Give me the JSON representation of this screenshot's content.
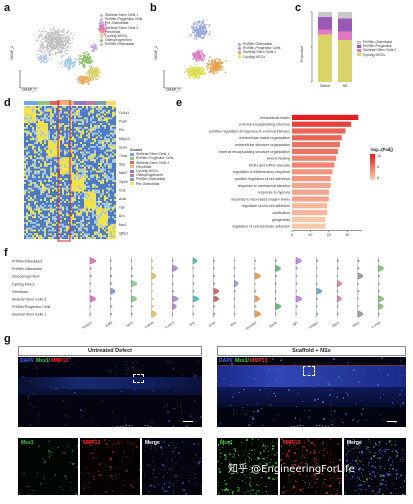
{
  "panels": {
    "a": {
      "letter": "a",
      "xlabel": "UMAP_1",
      "ylabel": "UMAP_2",
      "legend": [
        {
          "name": "Skeletal Stem Cells 1",
          "color": "#c9a7e8"
        },
        {
          "name": "Prf/Mtn-Progenitor Cells",
          "color": "#b8c9e6"
        },
        {
          "name": "Pre-Osteoblast",
          "color": "#9ecae1"
        },
        {
          "name": "Skeletal Stem Cells 2",
          "color": "#e377c2"
        },
        {
          "name": "Fibroblast",
          "color": "#f2a65a"
        },
        {
          "name": "Cycling MSCs",
          "color": "#d9d46a"
        },
        {
          "name": "Osteoprogenitors",
          "color": "#8fbf6a"
        },
        {
          "name": "Prf/Mtn-Osteoblast",
          "color": "#c0c0c0"
        }
      ]
    },
    "b": {
      "letter": "b",
      "xlabel": "UMAP_1",
      "ylabel": "UMAP_2",
      "legend": [
        {
          "name": "Prf/Mtn-Osteoblast",
          "color": "#9aa9e0"
        },
        {
          "name": "Prf/Mtn-Progenitor Cells",
          "color": "#e377c2"
        },
        {
          "name": "Skeletal Stem Cells 2",
          "color": "#e6a04d"
        },
        {
          "name": "Cycling MSCs",
          "color": "#dddd55"
        }
      ]
    },
    "c": {
      "letter": "c",
      "ylabel": "Proportion",
      "groups": [
        "Defect",
        "NS"
      ],
      "legend": [
        {
          "name": "Prf/Mtn-Osteoblast",
          "color": "#c8c8c8"
        },
        {
          "name": "Prf/Mtn-Progenitor",
          "color": "#9b59b6"
        },
        {
          "name": "Skeletal Stem Cells 2",
          "color": "#e377c2"
        },
        {
          "name": "Cycling MSCs",
          "color": "#d9d46a"
        }
      ]
    },
    "d": {
      "letter": "d",
      "genes": [
        "Col1a1",
        "Postn",
        "Ptn",
        "Mmp13",
        "Sparc",
        "Tnmd",
        "Ibsp",
        "Mki67",
        "Top2a",
        "Ctsk",
        "Acan",
        "Ogn",
        "Dcn",
        "Msx1",
        "Igfbp3"
      ],
      "legend_title": "Cluster",
      "legend": [
        {
          "name": "Skeletal Stem Cells 1",
          "color": "#6fa8dc"
        },
        {
          "name": "Prf/Mtn-Progenitor Cells",
          "color": "#93c47d"
        },
        {
          "name": "Skeletal Stem Cells 2",
          "color": "#e06666"
        },
        {
          "name": "Fibroblast",
          "color": "#f6b26b"
        },
        {
          "name": "Cycling MSCs",
          "color": "#8e7cc3"
        },
        {
          "name": "Osteoprogenitors",
          "color": "#c27ba0"
        },
        {
          "name": "Prf/Mtn-Osteoblast",
          "color": "#76a5af"
        },
        {
          "name": "Pre-Osteoblast",
          "color": "#ffd966"
        }
      ]
    },
    "e": {
      "letter": "e",
      "legend_title": "-log₁₀(Padj)",
      "legend_ticks": [
        "10",
        "8",
        "6"
      ]
    },
    "f": {
      "letter": "f",
      "rows": [
        "Prf/Mtn-Osteoblast",
        "Prf/Mtn-Osteoblast",
        "Osteoprogenitors",
        "Cycling MSCs",
        "Fibroblast",
        "Skeletal Stem Cells 2",
        "Prf/Mtn-Progenitor Cells",
        "Skeletal Stem Cells 1"
      ],
      "genes": [
        "Mmp13",
        "Edil3",
        "Nes2",
        "Col6a6",
        "Cx3cr1",
        "Bsp",
        "Acan",
        "Ibsp",
        "Serpinb2",
        "Ednrb",
        "Igf1",
        "Hmgb2",
        "Dpp1",
        "Msx1",
        "Il-1rapl"
      ],
      "colors": [
        "#e377c2",
        "#7a9ce8",
        "#8fd18f",
        "#e8c45a",
        "#b88de0",
        "#4dc6c6",
        "#d06b6b",
        "#9aa9e0",
        "#f0a04b",
        "#6bc06b",
        "#c38be0",
        "#5fb0d8",
        "#e68aa8",
        "#a0a0a0",
        "#88c77a"
      ]
    },
    "g": {
      "letter": "g",
      "left_title": "Untreated Defect",
      "right_title": "Scaffold + NSs",
      "channel_dapi": "DAPI/",
      "channel_msx1": "Msx1/",
      "channel_mmp13": "MMP13",
      "sub_labels": [
        "Msx1",
        "MMP13",
        "Merge",
        "Msx1",
        "MMP13",
        "Merge"
      ],
      "watermark": "知乎 @EngineeringForLife"
    }
  },
  "chart_data": [
    {
      "type": "bar",
      "id": "c",
      "categories": [
        "Defect",
        "NS"
      ],
      "series": [
        {
          "name": "Cycling MSCs",
          "values": [
            0.68,
            0.6
          ]
        },
        {
          "name": "Skeletal Stem Cells 2",
          "values": [
            0.07,
            0.12
          ]
        },
        {
          "name": "Prf/Mtn-Progenitor",
          "values": [
            0.18,
            0.19
          ]
        },
        {
          "name": "Prf/Mtn-Osteoblast",
          "values": [
            0.07,
            0.09
          ]
        }
      ],
      "ylabel": "Proportion",
      "ylim": [
        0,
        1
      ]
    },
    {
      "type": "bar",
      "id": "e",
      "orientation": "horizontal",
      "categories": [
        "extracellular matrix",
        "external encapsulating structure",
        "positive regulation of response to external stimulus",
        "extracellular matrix organization",
        "extracellular structure organization",
        "external encapsulating structure organization",
        "wound healing",
        "ERK1 and ERK2 cascade",
        "regulation of inflammatory response",
        "positive regulation of cell adhesion",
        "response to mechanical stimulus",
        "response to hypoxia",
        "response to decreased oxygen levels",
        "regulation of cell-cell adhesion",
        "ossification",
        "gliogenesis",
        "regulation of cell-substrate adhesion"
      ],
      "values": [
        36,
        32,
        29,
        27,
        26,
        25,
        24,
        23,
        22,
        21,
        21,
        20,
        20,
        19,
        19,
        18,
        18
      ],
      "padj_log": [
        11,
        10,
        9,
        9,
        8.5,
        8.5,
        8,
        8,
        7.5,
        7.5,
        7,
        7,
        7,
        6.5,
        6.5,
        6,
        6
      ],
      "xticks": [
        0,
        10,
        20,
        30
      ],
      "xlim": [
        0,
        38
      ]
    }
  ]
}
